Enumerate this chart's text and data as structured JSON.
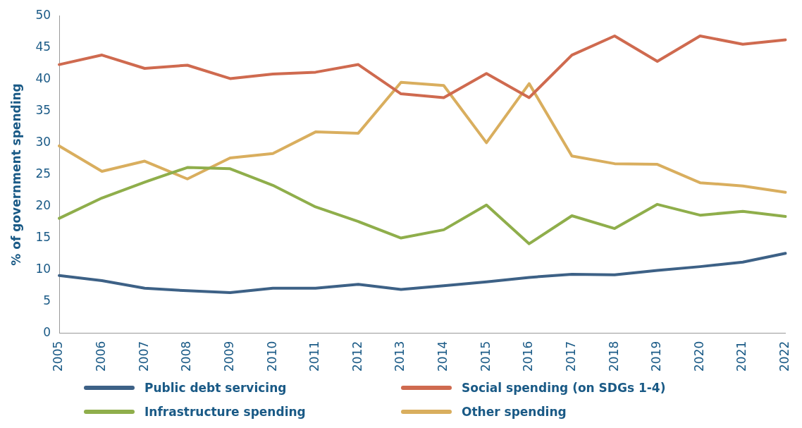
{
  "chart_data": {
    "type": "line",
    "ylabel": "% of government spending",
    "categories": [
      "2005",
      "2006",
      "2007",
      "2008",
      "2009",
      "2010",
      "2011",
      "2012",
      "2013",
      "2014",
      "2015",
      "2016",
      "2017",
      "2018",
      "2019",
      "2020",
      "2021",
      "2022"
    ],
    "series": [
      {
        "name": "Public debt servicing",
        "color": "#3d6186",
        "values": [
          9.1,
          8.3,
          7.1,
          6.7,
          6.4,
          7.1,
          7.1,
          7.7,
          6.9,
          7.5,
          8.1,
          8.8,
          9.3,
          9.2,
          9.9,
          10.5,
          11.2,
          12.6
        ]
      },
      {
        "name": "Social spending (on SDGs 1-4)",
        "color": "#cf6a4f",
        "values": [
          42.3,
          43.8,
          41.7,
          42.2,
          40.1,
          40.8,
          41.1,
          42.3,
          37.7,
          37.1,
          40.9,
          37.1,
          43.8,
          46.8,
          42.8,
          46.8,
          45.5,
          46.2
        ]
      },
      {
        "name": "Infrastructure spending",
        "color": "#8fae4b",
        "values": [
          18.1,
          21.3,
          23.8,
          26.1,
          25.9,
          23.3,
          19.9,
          17.6,
          15.0,
          16.3,
          20.2,
          14.1,
          18.5,
          16.5,
          20.3,
          18.6,
          19.2,
          18.4
        ]
      },
      {
        "name": "Other spending",
        "color": "#d9ae5e",
        "values": [
          29.5,
          25.5,
          27.1,
          24.3,
          27.6,
          28.3,
          31.7,
          31.5,
          39.5,
          39.0,
          30.0,
          39.3,
          27.9,
          26.7,
          26.6,
          23.7,
          23.2,
          22.2
        ]
      }
    ],
    "ylim": [
      0,
      50
    ],
    "yticks": [
      0,
      5,
      10,
      15,
      20,
      25,
      30,
      35,
      40,
      45,
      50
    ],
    "grid": false,
    "legend": "bottom",
    "marker": "none",
    "line_style": "solid"
  }
}
